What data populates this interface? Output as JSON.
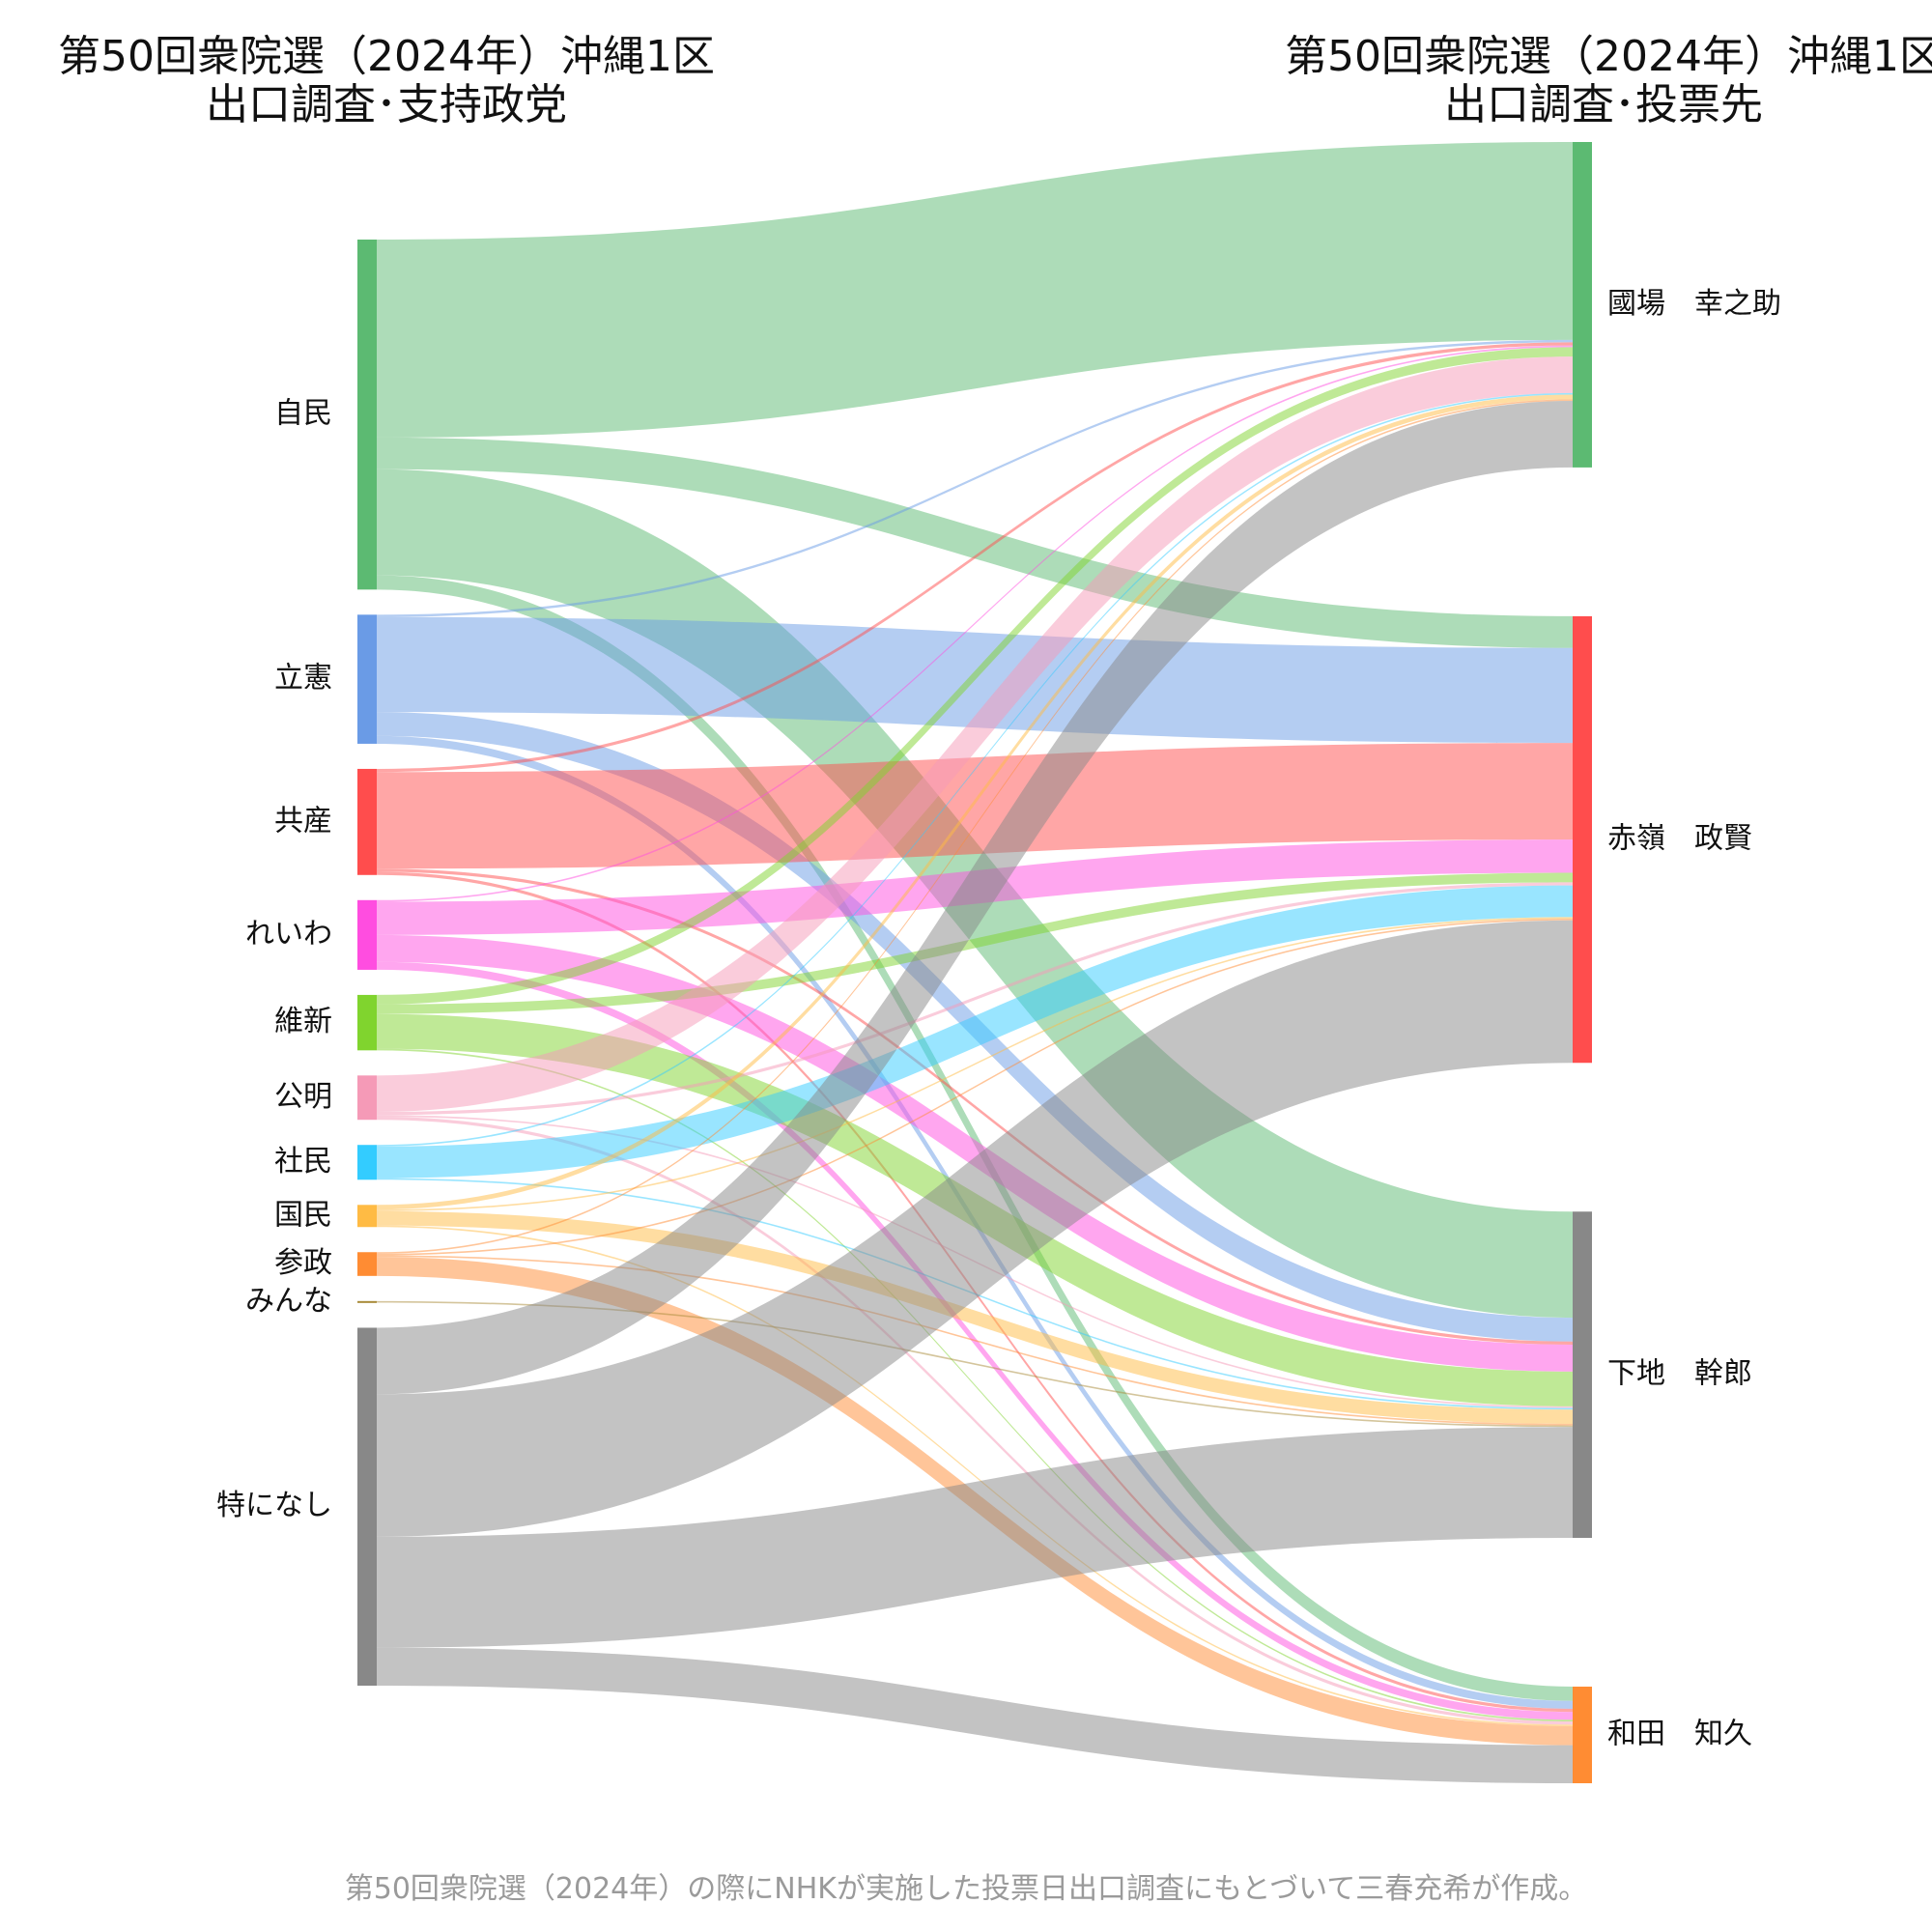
{
  "titles": {
    "left_line1": "第50回衆院選（2024年）沖縄1区",
    "left_line2": "出口調査･支持政党",
    "right_line1": "第50回衆院選（2024年）沖縄1区",
    "right_line2": "出口調査･投票先"
  },
  "caption": "第50回衆院選（2024年）の際にNHKが実施した投票日出口調査にもとづいて三春充希が作成。",
  "chart_data": {
    "type": "sankey",
    "unit": "% of respondents (estimated from band widths)",
    "sources": [
      {
        "name": "自民",
        "color": "#5cba72"
      },
      {
        "name": "立憲",
        "color": "#6a9be6"
      },
      {
        "name": "共産",
        "color": "#ff4d4d"
      },
      {
        "name": "れいわ",
        "color": "#ff4de0"
      },
      {
        "name": "維新",
        "color": "#80d42e"
      },
      {
        "name": "公明",
        "color": "#f59ab7"
      },
      {
        "name": "社民",
        "color": "#33ccff"
      },
      {
        "name": "国民",
        "color": "#ffbb44"
      },
      {
        "name": "参政",
        "color": "#ff8c33"
      },
      {
        "name": "みんな",
        "color": "#a98b3a"
      },
      {
        "name": "特になし",
        "color": "#888888"
      }
    ],
    "targets": [
      {
        "name": "國場　幸之助",
        "color": "#5cba72"
      },
      {
        "name": "赤嶺　政賢",
        "color": "#ff4d4d"
      },
      {
        "name": "下地　幹郎",
        "color": "#888888"
      },
      {
        "name": "和田　知久",
        "color": "#ff8c33"
      }
    ],
    "flows": [
      {
        "source": "自民",
        "target": "國場　幸之助",
        "value": 12.5
      },
      {
        "source": "自民",
        "target": "赤嶺　政賢",
        "value": 2.0
      },
      {
        "source": "自民",
        "target": "下地　幹郎",
        "value": 6.7
      },
      {
        "source": "自民",
        "target": "和田　知久",
        "value": 0.9
      },
      {
        "source": "立憲",
        "target": "國場　幸之助",
        "value": 0.15
      },
      {
        "source": "立憲",
        "target": "赤嶺　政賢",
        "value": 6.0
      },
      {
        "source": "立憲",
        "target": "下地　幹郎",
        "value": 1.5
      },
      {
        "source": "立憲",
        "target": "和田　知久",
        "value": 0.5
      },
      {
        "source": "共産",
        "target": "國場　幸之助",
        "value": 0.2
      },
      {
        "source": "共産",
        "target": "赤嶺　政賢",
        "value": 6.1
      },
      {
        "source": "共産",
        "target": "下地　幹郎",
        "value": 0.2
      },
      {
        "source": "共産",
        "target": "和田　知久",
        "value": 0.2
      },
      {
        "source": "れいわ",
        "target": "國場　幸之助",
        "value": 0.1
      },
      {
        "source": "れいわ",
        "target": "赤嶺　政賢",
        "value": 2.1
      },
      {
        "source": "れいわ",
        "target": "下地　幹郎",
        "value": 1.7
      },
      {
        "source": "れいわ",
        "target": "和田　知久",
        "value": 0.5
      },
      {
        "source": "維新",
        "target": "國場　幸之助",
        "value": 0.6
      },
      {
        "source": "維新",
        "target": "赤嶺　政賢",
        "value": 0.6
      },
      {
        "source": "維新",
        "target": "下地　幹郎",
        "value": 2.2
      },
      {
        "source": "維新",
        "target": "和田　知久",
        "value": 0.1
      },
      {
        "source": "公明",
        "target": "國場　幸之助",
        "value": 2.3
      },
      {
        "source": "公明",
        "target": "赤嶺　政賢",
        "value": 0.2
      },
      {
        "source": "公明",
        "target": "下地　幹郎",
        "value": 0.1
      },
      {
        "source": "公明",
        "target": "和田　知久",
        "value": 0.2
      },
      {
        "source": "社民",
        "target": "國場　幸之助",
        "value": 0.1
      },
      {
        "source": "社民",
        "target": "赤嶺　政賢",
        "value": 2.0
      },
      {
        "source": "社民",
        "target": "下地　幹郎",
        "value": 0.1
      },
      {
        "source": "国民",
        "target": "國場　幸之助",
        "value": 0.3
      },
      {
        "source": "国民",
        "target": "赤嶺　政賢",
        "value": 0.1
      },
      {
        "source": "国民",
        "target": "下地　幹郎",
        "value": 0.9
      },
      {
        "source": "国民",
        "target": "和田　知久",
        "value": 0.1
      },
      {
        "source": "参政",
        "target": "國場　幸之助",
        "value": 0.1
      },
      {
        "source": "参政",
        "target": "赤嶺　政賢",
        "value": 0.1
      },
      {
        "source": "参政",
        "target": "下地　幹郎",
        "value": 0.1
      },
      {
        "source": "参政",
        "target": "和田　知久",
        "value": 1.2
      },
      {
        "source": "みんな",
        "target": "下地　幹郎",
        "value": 0.1
      },
      {
        "source": "特になし",
        "target": "國場　幸之助",
        "value": 4.2
      },
      {
        "source": "特になし",
        "target": "赤嶺　政賢",
        "value": 9.0
      },
      {
        "source": "特になし",
        "target": "下地　幹郎",
        "value": 7.0
      },
      {
        "source": "特になし",
        "target": "和田　知久",
        "value": 2.4
      }
    ]
  }
}
